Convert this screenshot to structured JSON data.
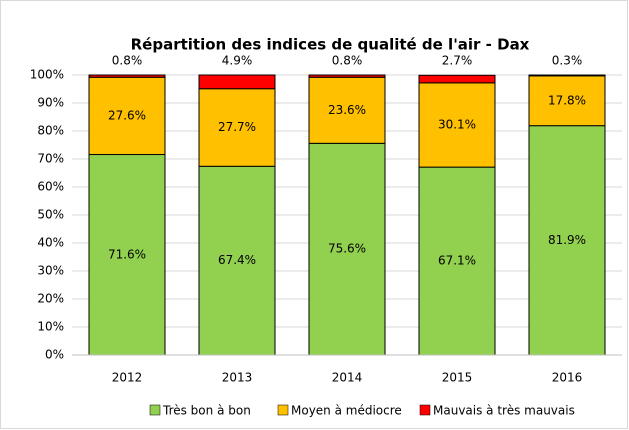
{
  "chart_data": {
    "type": "stacked_bar",
    "title": "Répartition des indices de qualité de l'air - Dax",
    "categories": [
      "2012",
      "2013",
      "2014",
      "2015",
      "2016"
    ],
    "series": [
      {
        "name": "Très bon à bon",
        "color": "#92d050",
        "values": [
          71.6,
          67.4,
          75.6,
          67.1,
          81.9
        ],
        "value_labels": [
          "71.6%",
          "67.4%",
          "75.6%",
          "67.1%",
          "81.9%"
        ]
      },
      {
        "name": "Moyen à médiocre",
        "color": "#ffc000",
        "values": [
          27.6,
          27.7,
          23.6,
          30.1,
          17.8
        ],
        "value_labels": [
          "27.6%",
          "27.7%",
          "23.6%",
          "30.1%",
          "17.8%"
        ]
      },
      {
        "name": "Mauvais à très mauvais",
        "color": "#ff0000",
        "values": [
          0.8,
          4.9,
          0.8,
          2.7,
          0.3
        ],
        "value_labels": [
          "0.8%",
          "4.9%",
          "0.8%",
          "2.7%",
          "0.3%"
        ]
      }
    ],
    "ylim": [
      0,
      100
    ],
    "yticks": [
      {
        "value": 0,
        "label": "0%"
      },
      {
        "value": 10,
        "label": "10%"
      },
      {
        "value": 20,
        "label": "20%"
      },
      {
        "value": 30,
        "label": "30%"
      },
      {
        "value": 40,
        "label": "40%"
      },
      {
        "value": 50,
        "label": "50%"
      },
      {
        "value": 60,
        "label": "60%"
      },
      {
        "value": 70,
        "label": "70%"
      },
      {
        "value": 80,
        "label": "80%"
      },
      {
        "value": 90,
        "label": "90%"
      },
      {
        "value": 100,
        "label": "100%"
      }
    ],
    "grid": true,
    "legend": "bottom"
  }
}
